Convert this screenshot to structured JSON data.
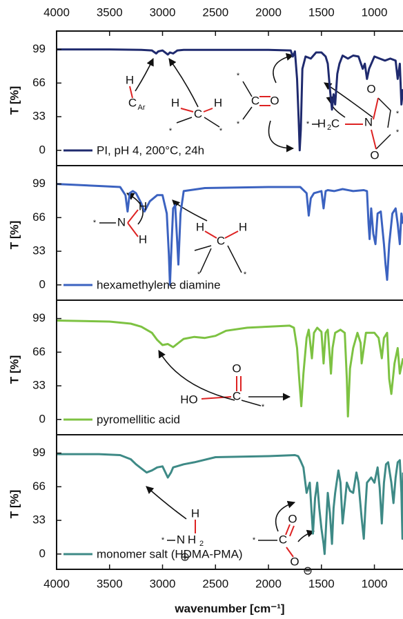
{
  "chart_data": [
    {
      "type": "line",
      "ylabel": "T [%]",
      "xlim": [
        4000,
        730
      ],
      "ylim": [
        -15,
        117
      ],
      "yticks": [
        0,
        33,
        66,
        99
      ],
      "xticks": [
        4000,
        3500,
        3000,
        2500,
        2000,
        1500,
        1000
      ],
      "x": [
        4000,
        3500,
        3200,
        3100,
        3060,
        3040,
        3000,
        2950,
        2930,
        2900,
        2860,
        2800,
        2500,
        2000,
        1790,
        1770,
        1750,
        1730,
        1715,
        1705,
        1695,
        1680,
        1650,
        1600,
        1550,
        1500,
        1460,
        1440,
        1420,
        1400,
        1385,
        1370,
        1350,
        1330,
        1300,
        1250,
        1200,
        1150,
        1110,
        1090,
        1070,
        1050,
        1000,
        950,
        900,
        850,
        800,
        780,
        760,
        745,
        730
      ],
      "series": [
        {
          "name": "PI, pH 4, 200°C, 24h",
          "color": "#1f2a6e",
          "values": [
            99,
            99,
            98.5,
            98,
            95,
            97,
            98,
            94,
            96,
            95,
            98,
            98.5,
            98.5,
            98.5,
            98,
            92,
            97,
            70,
            30,
            0,
            20,
            80,
            92,
            90,
            96,
            96,
            92,
            85,
            60,
            40,
            55,
            45,
            75,
            85,
            93,
            90,
            93,
            92,
            80,
            85,
            70,
            80,
            92,
            90,
            88,
            90,
            88,
            70,
            85,
            45,
            60
          ]
        }
      ],
      "annotations": [
        "H",
        "C",
        "Ar",
        "H",
        "C",
        "H",
        "*",
        "*",
        "*",
        "C",
        "O",
        "*",
        "*",
        "H",
        "2",
        "C",
        "N",
        "O",
        "O",
        "*",
        "*"
      ]
    },
    {
      "type": "line",
      "ylabel": "T [%]",
      "xlim": [
        4000,
        730
      ],
      "ylim": [
        -15,
        117
      ],
      "yticks": [
        0,
        33,
        66,
        99
      ],
      "x": [
        4000,
        3600,
        3400,
        3350,
        3330,
        3310,
        3280,
        3250,
        3200,
        3170,
        3120,
        3050,
        3000,
        2960,
        2940,
        2930,
        2915,
        2900,
        2880,
        2860,
        2850,
        2830,
        2800,
        2600,
        2000,
        1700,
        1640,
        1620,
        1600,
        1570,
        1500,
        1480,
        1460,
        1440,
        1380,
        1300,
        1200,
        1100,
        1070,
        1055,
        1045,
        1030,
        1010,
        990,
        970,
        940,
        910,
        895,
        880,
        860,
        830,
        800,
        780,
        760,
        745,
        730
      ],
      "series": [
        {
          "name": "hexamethylene diamine",
          "color": "#3b62c0",
          "values": [
            99,
            97,
            96,
            88,
            72,
            90,
            92,
            90,
            80,
            72,
            82,
            88,
            88,
            70,
            30,
            0,
            40,
            75,
            78,
            40,
            20,
            70,
            92,
            95,
            96,
            96,
            90,
            68,
            85,
            90,
            92,
            75,
            92,
            93,
            92,
            94,
            92,
            93,
            92,
            60,
            45,
            75,
            50,
            40,
            70,
            72,
            40,
            20,
            5,
            40,
            70,
            75,
            60,
            40,
            70,
            60
          ]
        }
      ],
      "annotations": [
        "*",
        "N",
        "H",
        "H",
        "H",
        "C",
        "H",
        "*",
        "*"
      ]
    },
    {
      "type": "line",
      "ylabel": "T [%]",
      "xlim": [
        4000,
        730
      ],
      "ylim": [
        -15,
        117
      ],
      "yticks": [
        0,
        33,
        66,
        99
      ],
      "x": [
        4000,
        3500,
        3300,
        3200,
        3100,
        3050,
        3000,
        2950,
        2900,
        2850,
        2800,
        2700,
        2600,
        2500,
        2400,
        2200,
        2000,
        1800,
        1760,
        1730,
        1710,
        1690,
        1670,
        1640,
        1620,
        1600,
        1590,
        1570,
        1540,
        1500,
        1480,
        1460,
        1440,
        1420,
        1410,
        1395,
        1370,
        1320,
        1280,
        1260,
        1250,
        1230,
        1200,
        1160,
        1130,
        1120,
        1100,
        1080,
        1000,
        960,
        930,
        910,
        880,
        860,
        840,
        810,
        780,
        760,
        740,
        730
      ],
      "series": [
        {
          "name": "pyromellitic acid",
          "color": "#7dc242",
          "values": [
            97,
            96,
            94,
            91,
            85,
            78,
            73,
            74,
            71,
            75,
            79,
            81,
            80,
            82,
            87,
            90,
            91,
            92,
            90,
            70,
            40,
            13,
            45,
            80,
            88,
            70,
            60,
            85,
            90,
            86,
            55,
            85,
            88,
            60,
            45,
            70,
            85,
            88,
            85,
            40,
            3,
            50,
            70,
            85,
            75,
            55,
            70,
            85,
            85,
            80,
            60,
            80,
            85,
            40,
            25,
            55,
            70,
            45,
            55,
            60
          ]
        }
      ],
      "annotations": [
        "O",
        "HO",
        "C",
        "*"
      ]
    },
    {
      "type": "line",
      "ylabel": "T [%]",
      "xlabel": "wavenumber [cm⁻¹]",
      "xlim": [
        4000,
        730
      ],
      "ylim": [
        -15,
        117
      ],
      "yticks": [
        0,
        33,
        66,
        99
      ],
      "xticks": [
        4000,
        3500,
        3000,
        2500,
        2000,
        1500,
        1000
      ],
      "x": [
        4000,
        3600,
        3400,
        3300,
        3250,
        3200,
        3150,
        3100,
        3050,
        3000,
        2950,
        2920,
        2900,
        2800,
        2700,
        2500,
        2000,
        1750,
        1720,
        1700,
        1670,
        1640,
        1610,
        1580,
        1560,
        1540,
        1520,
        1500,
        1480,
        1470,
        1455,
        1440,
        1420,
        1400,
        1385,
        1370,
        1340,
        1320,
        1300,
        1280,
        1260,
        1230,
        1200,
        1170,
        1150,
        1120,
        1100,
        1085,
        1070,
        1030,
        1000,
        970,
        950,
        930,
        910,
        890,
        870,
        840,
        820,
        800,
        780,
        760,
        745,
        735,
        730
      ],
      "series": [
        {
          "name": "monomer salt (HDMA-PMA)",
          "color": "#3e8a86",
          "values": [
            98,
            98,
            97,
            93,
            88,
            84,
            80,
            82,
            85,
            86,
            75,
            80,
            85,
            88,
            90,
            95,
            96,
            97,
            96,
            92,
            85,
            60,
            70,
            20,
            55,
            70,
            45,
            25,
            10,
            0,
            30,
            60,
            40,
            10,
            45,
            60,
            82,
            70,
            30,
            50,
            70,
            62,
            60,
            80,
            70,
            35,
            15,
            45,
            70,
            75,
            70,
            85,
            65,
            30,
            70,
            88,
            90,
            70,
            50,
            75,
            90,
            92,
            60,
            15,
            80
          ]
        }
      ],
      "annotations": [
        "H",
        "*",
        "N",
        "H",
        "2",
        "⊕",
        "*",
        "C",
        "O",
        "O",
        "⊖"
      ]
    }
  ]
}
